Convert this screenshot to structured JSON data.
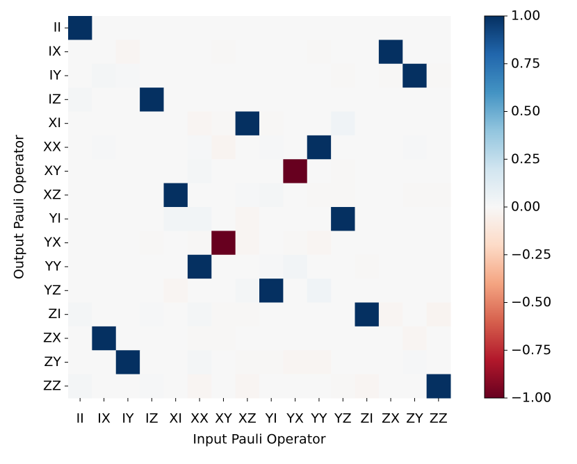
{
  "chart_data": {
    "type": "heatmap",
    "x_label": "Input Pauli Operator",
    "y_label": "Output Pauli Operator",
    "x": [
      "II",
      "IX",
      "IY",
      "IZ",
      "XI",
      "XX",
      "XY",
      "XZ",
      "YI",
      "YX",
      "YY",
      "YZ",
      "ZI",
      "ZX",
      "ZY",
      "ZZ"
    ],
    "y": [
      "II",
      "IX",
      "IY",
      "IZ",
      "XI",
      "XX",
      "XY",
      "XZ",
      "YI",
      "YX",
      "YY",
      "YZ",
      "ZI",
      "ZX",
      "ZY",
      "ZZ"
    ],
    "values": [
      [
        1,
        0,
        0,
        0,
        0,
        0,
        0,
        0,
        0,
        0,
        0,
        0,
        0,
        0,
        0,
        0
      ],
      [
        0,
        0,
        -0.02,
        0,
        0,
        0,
        -0.01,
        0,
        0,
        0,
        -0.01,
        0,
        0,
        1,
        0,
        0
      ],
      [
        0,
        0.02,
        0.01,
        0,
        0,
        0,
        0,
        0,
        0,
        0,
        0,
        -0.01,
        0,
        -0.01,
        1,
        -0.01
      ],
      [
        0.02,
        0,
        0,
        1,
        0,
        0,
        0,
        0,
        0,
        0,
        0,
        0,
        0,
        0,
        0,
        0
      ],
      [
        0,
        0,
        0,
        0,
        0,
        -0.02,
        -0.01,
        1,
        -0.01,
        0,
        0,
        0.04,
        0,
        0,
        0,
        0
      ],
      [
        0,
        0.01,
        0,
        0,
        0,
        0.01,
        -0.03,
        0,
        0.01,
        0,
        1,
        0,
        0,
        0,
        0.01,
        0
      ],
      [
        0,
        0,
        0,
        0,
        0,
        0.02,
        0,
        0,
        0,
        -1,
        0,
        -0.01,
        0,
        0,
        0,
        0
      ],
      [
        0,
        0,
        0,
        0,
        1,
        0,
        0,
        0.01,
        0.02,
        0,
        -0.01,
        -0.01,
        0,
        0,
        -0.01,
        -0.01
      ],
      [
        0,
        0,
        0,
        0,
        0.03,
        0.03,
        0,
        -0.02,
        0,
        0,
        0,
        1,
        0,
        0,
        0,
        0
      ],
      [
        0,
        0,
        0,
        -0.01,
        0,
        -0.01,
        -1,
        -0.02,
        0,
        -0.01,
        -0.02,
        0,
        0,
        0,
        0,
        0
      ],
      [
        0,
        0,
        0,
        0,
        0,
        1,
        0,
        0,
        0.01,
        0.03,
        0,
        0,
        -0.01,
        0,
        0,
        0
      ],
      [
        0,
        0,
        0,
        0,
        -0.02,
        0,
        0,
        0.02,
        1,
        0,
        0.04,
        0,
        0,
        0,
        0,
        0
      ],
      [
        0.02,
        0,
        0,
        0.01,
        0,
        0.02,
        -0.01,
        -0.01,
        0,
        0,
        0,
        0,
        1,
        -0.02,
        0,
        -0.03
      ],
      [
        0,
        1,
        0,
        0,
        0,
        -0.01,
        -0.01,
        0,
        0,
        0,
        0,
        0,
        0,
        0,
        -0.02,
        0
      ],
      [
        0,
        0,
        1,
        0,
        0,
        0.02,
        0,
        -0.01,
        -0.01,
        -0.02,
        -0.02,
        0,
        0,
        0,
        0.01,
        0
      ],
      [
        0.02,
        0,
        0,
        0.01,
        0,
        -0.02,
        0,
        -0.02,
        0,
        0,
        0,
        -0.01,
        -0.02,
        0,
        0,
        1
      ]
    ],
    "zlim": [
      -1,
      1
    ],
    "colorscale": [
      "#67001f",
      "#b2182b",
      "#d6604d",
      "#f4a582",
      "#fddbc7",
      "#f7f7f7",
      "#d1e5f0",
      "#92c5de",
      "#4393c3",
      "#2166ac",
      "#053061"
    ],
    "zticks": [
      {
        "value": 1,
        "label": "1.00"
      },
      {
        "value": 0.75,
        "label": "0.75"
      },
      {
        "value": 0.5,
        "label": "0.50"
      },
      {
        "value": 0.25,
        "label": "0.25"
      },
      {
        "value": 0,
        "label": "0.00"
      },
      {
        "value": -0.25,
        "label": "−0.25"
      },
      {
        "value": -0.5,
        "label": "−0.50"
      },
      {
        "value": -0.75,
        "label": "−0.75"
      },
      {
        "value": -1,
        "label": "−1.00"
      }
    ]
  }
}
